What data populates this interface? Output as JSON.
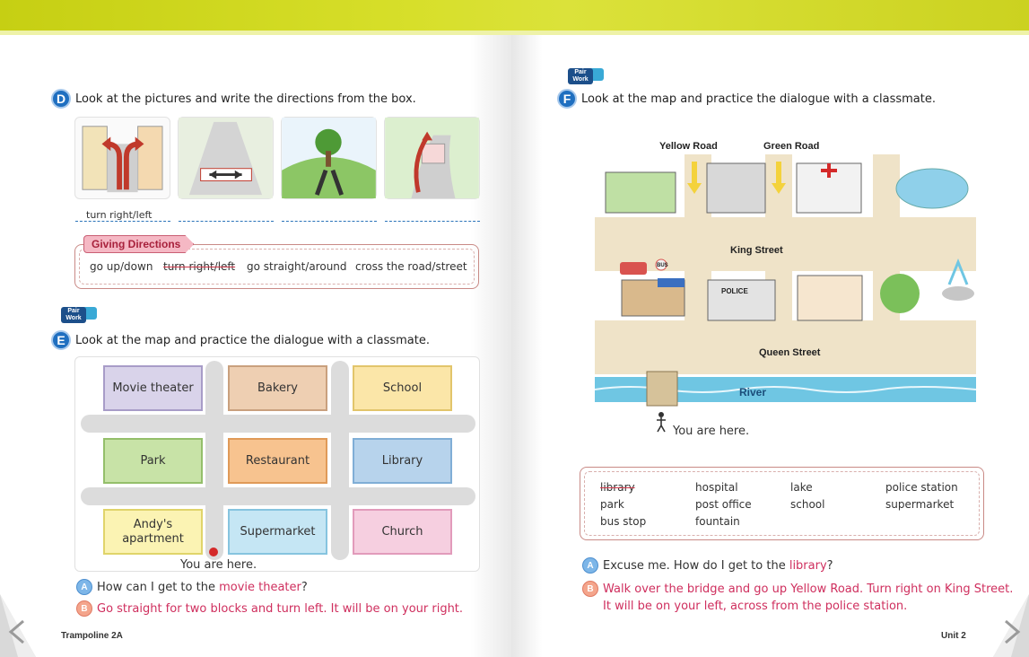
{
  "left": {
    "section_d": {
      "letter": "D",
      "title": "Look at the pictures and write the directions from the box.",
      "example_answer": "turn right/left",
      "box_tag": "Giving Directions",
      "options": [
        "go up/down",
        "turn right/left",
        "go straight/around",
        "cross the road/street"
      ]
    },
    "section_e": {
      "badge_line1": "Pair",
      "badge_line2": "Work",
      "letter": "E",
      "title": "Look at the map and practice the dialogue with a classmate.",
      "buildings": [
        {
          "label": "Movie theater",
          "fill": "#d9d3ea",
          "border": "#a89cc8"
        },
        {
          "label": "Bakery",
          "fill": "#eecfb2",
          "border": "#c9a07e"
        },
        {
          "label": "School",
          "fill": "#fbe6a8",
          "border": "#e2c56b"
        },
        {
          "label": "Park",
          "fill": "#c8e3a7",
          "border": "#94bf6a"
        },
        {
          "label": "Restaurant",
          "fill": "#f7c38f",
          "border": "#e09a58"
        },
        {
          "label": "Library",
          "fill": "#b7d3ec",
          "border": "#80aed6"
        },
        {
          "label": "Andy's\napartment",
          "fill": "#fbf3b3",
          "border": "#e0d46a"
        },
        {
          "label": "Supermarket",
          "fill": "#c5e6f4",
          "border": "#86c4df"
        },
        {
          "label": "Church",
          "fill": "#f6cfe0",
          "border": "#e29bbb"
        }
      ],
      "you_are_here": "You are here.",
      "dialogue": [
        {
          "speaker": "A",
          "before": "How can I get to the ",
          "highlight": "movie theater",
          "after": "?"
        },
        {
          "speaker": "B",
          "text": "Go straight for two blocks and turn left. It will be on your right."
        }
      ]
    },
    "footer": "Trampoline 2A"
  },
  "right": {
    "section_f": {
      "badge_line1": "Pair",
      "badge_line2": "Work",
      "letter": "F",
      "title": "Look at the map and practice the dialogue with a classmate.",
      "map_labels": {
        "yellow_road": "Yellow Road",
        "green_road": "Green Road",
        "king_street": "King Street",
        "queen_street": "Queen Street",
        "river": "River",
        "police_sign": "POLICE",
        "bus_stop_sign": "BUS"
      },
      "you_are_here": "You are here.",
      "words": [
        [
          "library",
          "park",
          "bus stop"
        ],
        [
          "hospital",
          "post office",
          "fountain"
        ],
        [
          "lake",
          "school"
        ],
        [
          "police station",
          "supermarket"
        ]
      ],
      "dialogue": [
        {
          "speaker": "A",
          "before": "Excuse me. How do I get to the ",
          "highlight": "library",
          "after": "?"
        },
        {
          "speaker": "B",
          "line1": "Walk over the bridge and go up Yellow Road. Turn right on King Street.",
          "line2": "It will be on your left, across from the police station."
        }
      ]
    },
    "footer": "Unit 2"
  }
}
